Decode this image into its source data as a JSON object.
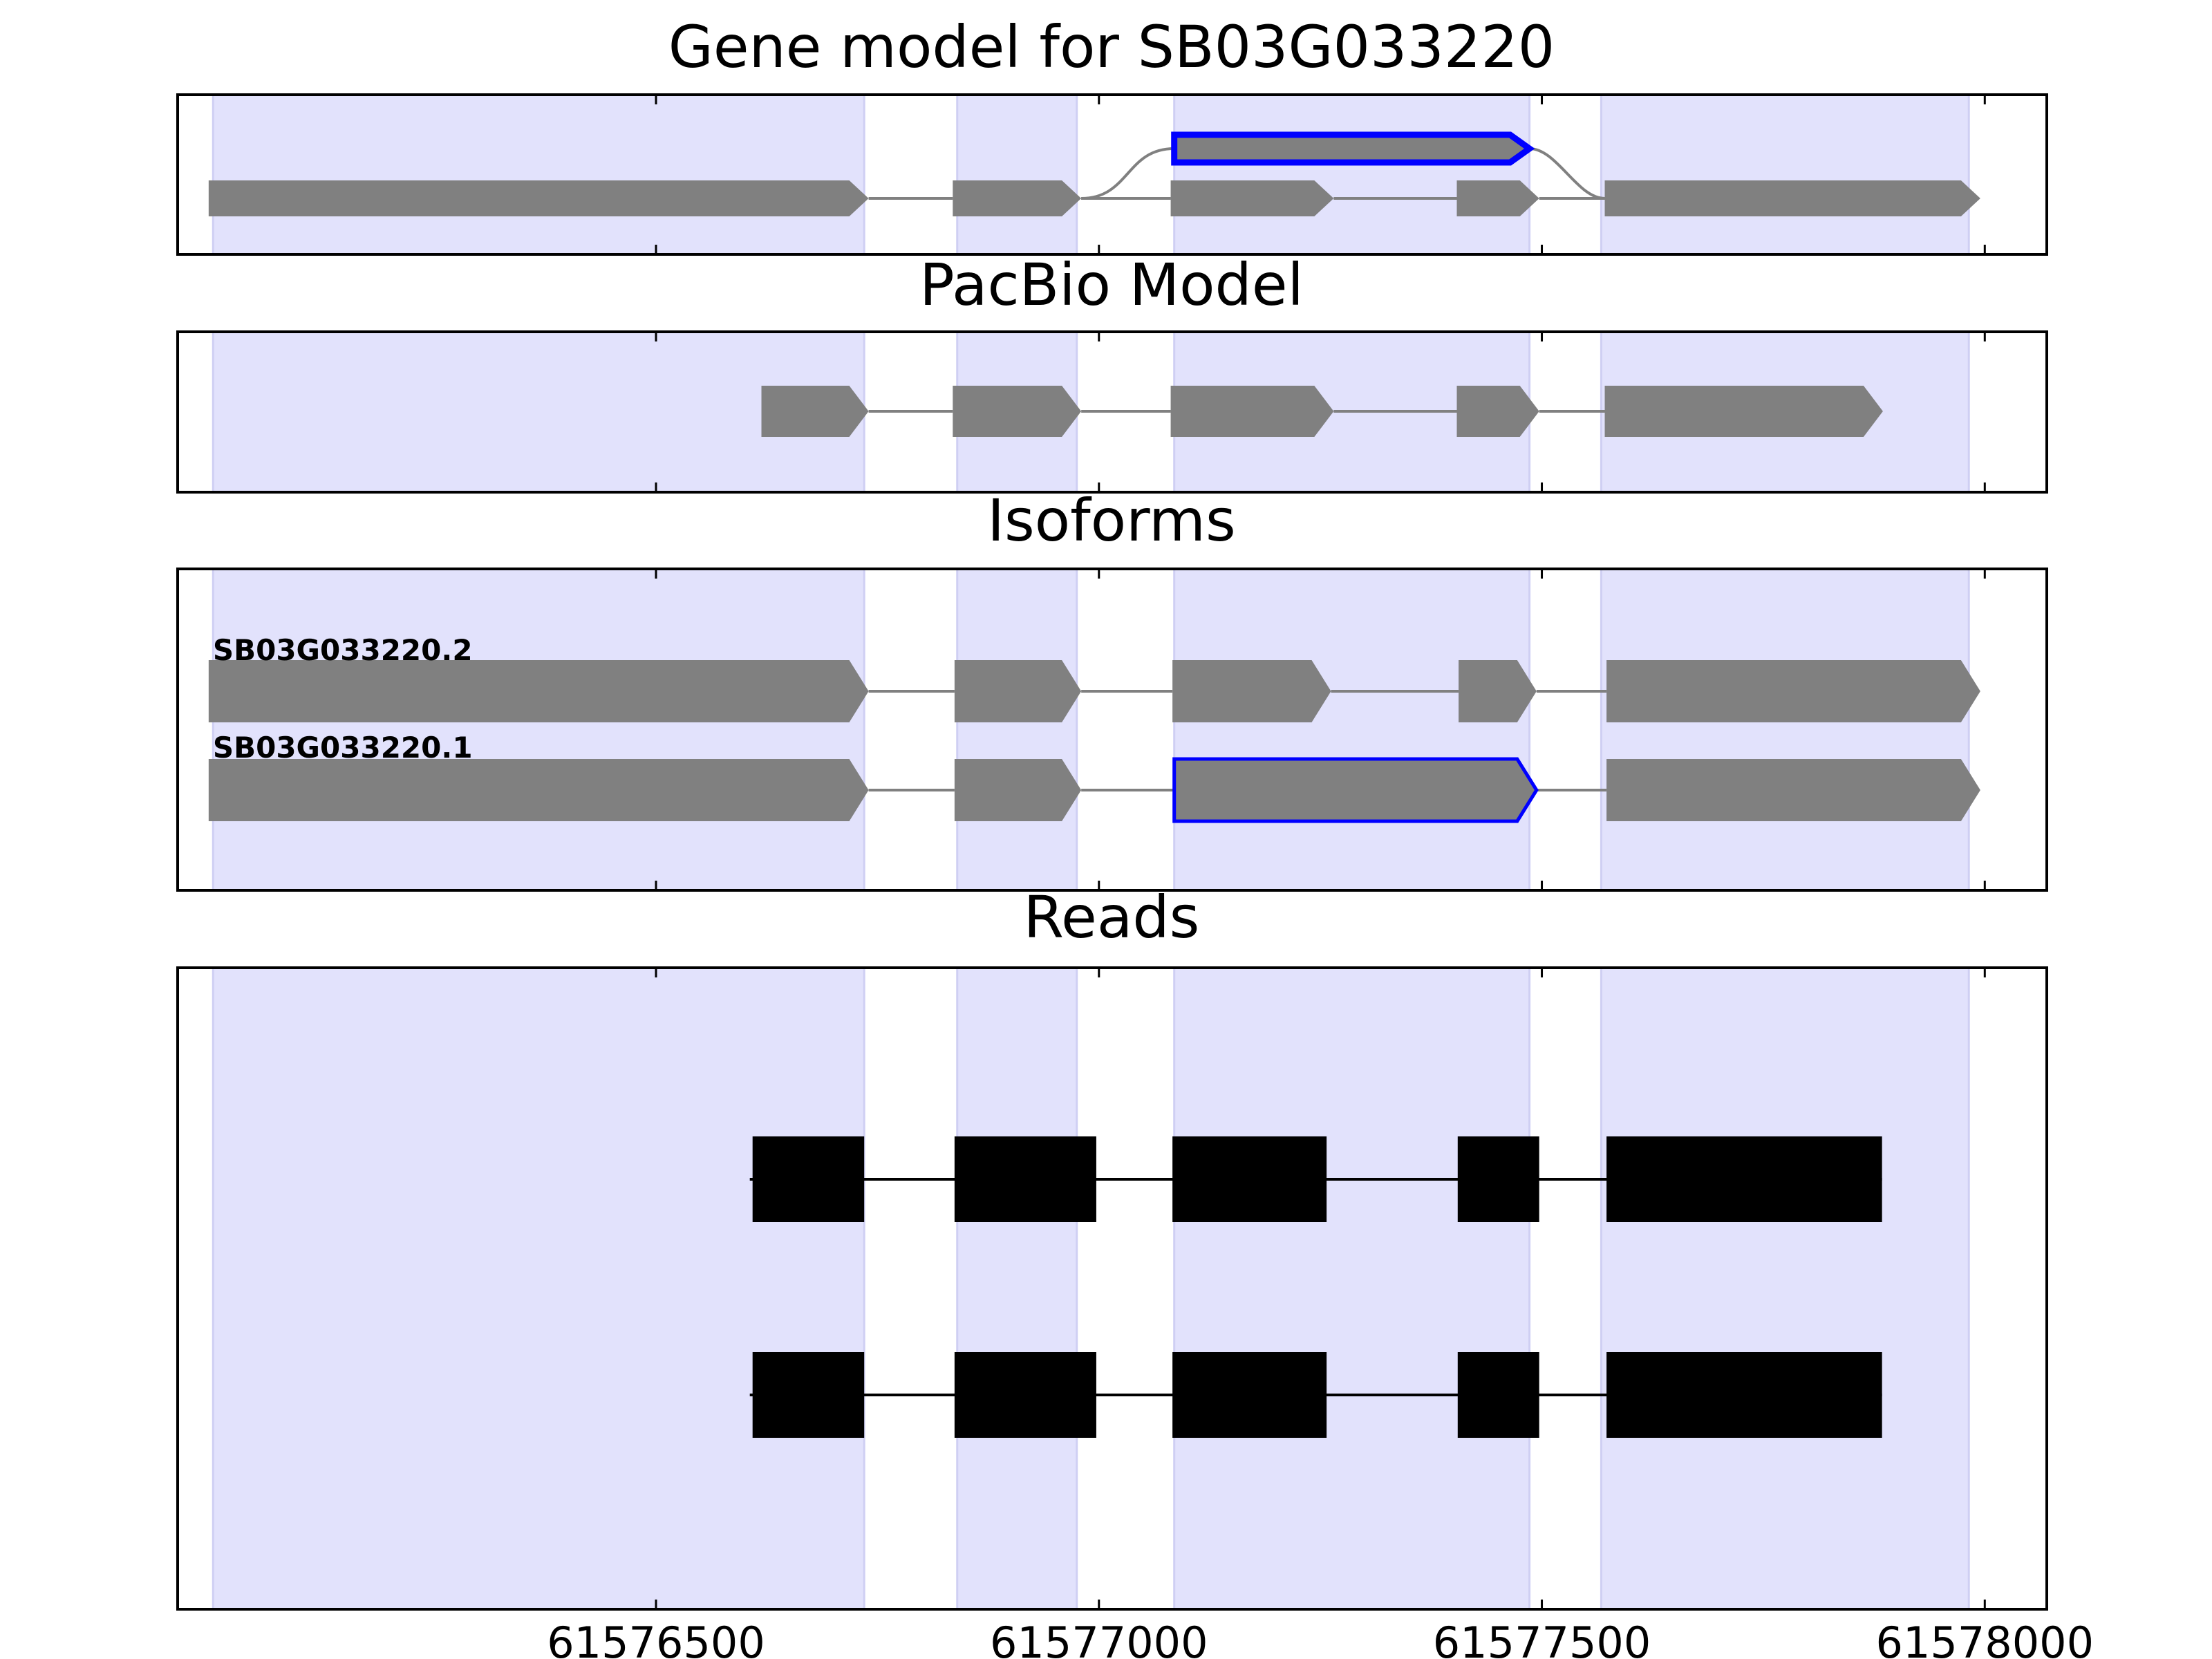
{
  "colors": {
    "exon_region": "#e2e2fc",
    "exon_region_edge": "#cfcff3",
    "feature": "#808080",
    "highlight": "#0000ff",
    "read": "#000000",
    "frame": "#000000"
  },
  "chart_data": {
    "type": "gene-track",
    "xlim": [
      61575960,
      61578070
    ],
    "x_ticks": [
      61576500,
      61577000,
      61577500,
      61578000
    ],
    "x_tick_labels": [
      "61576500",
      "61577000",
      "61577500",
      "61578000"
    ],
    "exon_regions": [
      [
        61576000,
        61576735
      ],
      [
        61576840,
        61576975
      ],
      [
        61577085,
        61577486
      ],
      [
        61577567,
        61577982
      ]
    ],
    "panels": [
      {
        "title": "Gene model for SB03G033220",
        "key": "gene",
        "features": [
          {
            "start": 61575995,
            "end": 61576740,
            "lane": "low",
            "strand": "+"
          },
          {
            "start": 61576835,
            "end": 61576980,
            "lane": "low",
            "strand": "+"
          },
          {
            "start": 61577081,
            "end": 61577265,
            "lane": "low",
            "strand": "+"
          },
          {
            "start": 61577404,
            "end": 61577497,
            "lane": "low",
            "strand": "+"
          },
          {
            "start": 61577571,
            "end": 61577995,
            "lane": "low",
            "strand": "+"
          },
          {
            "start": 61577085,
            "end": 61577486,
            "lane": "high",
            "strand": "+",
            "highlight": true
          }
        ],
        "introns": [
          [
            61576740,
            61576835,
            "low"
          ],
          [
            61576980,
            61577081,
            "low"
          ],
          [
            61577265,
            61577404,
            "low"
          ],
          [
            61577497,
            61577571,
            "low"
          ]
        ],
        "bridges": [
          [
            61576980,
            61577085
          ],
          [
            61577486,
            61577571
          ]
        ]
      },
      {
        "title": "PacBio Model",
        "key": "pacbio",
        "features": [
          {
            "start": 61576619,
            "end": 61576740,
            "strand": "+"
          },
          {
            "start": 61576835,
            "end": 61576980,
            "strand": "+"
          },
          {
            "start": 61577081,
            "end": 61577265,
            "strand": "+"
          },
          {
            "start": 61577404,
            "end": 61577497,
            "strand": "+"
          },
          {
            "start": 61577571,
            "end": 61577885,
            "strand": "+"
          }
        ]
      },
      {
        "title": "Isoforms",
        "key": "isoforms",
        "isoforms": [
          {
            "name": "SB03G033220.2",
            "exons": [
              [
                61575995,
                61576740
              ],
              [
                61576837,
                61576980
              ],
              [
                61577083,
                61577262
              ],
              [
                61577406,
                61577494
              ],
              [
                61577573,
                61577995
              ]
            ]
          },
          {
            "name": "SB03G033220.1",
            "exons": [
              [
                61575995,
                61576740
              ],
              [
                61576837,
                61576980
              ],
              [
                61577085,
                61577494,
                true
              ],
              [
                61577573,
                61577995
              ]
            ]
          }
        ]
      },
      {
        "title": "Reads",
        "key": "reads",
        "reads": [
          [
            [
              61576609,
              61576735
            ],
            [
              61576837,
              61576997
            ],
            [
              61577083,
              61577257
            ],
            [
              61577405,
              61577497
            ],
            [
              61577573,
              61577884
            ]
          ],
          [
            [
              61576609,
              61576735
            ],
            [
              61576837,
              61576997
            ],
            [
              61577083,
              61577257
            ],
            [
              61577405,
              61577497
            ],
            [
              61577573,
              61577884
            ]
          ]
        ]
      }
    ]
  }
}
